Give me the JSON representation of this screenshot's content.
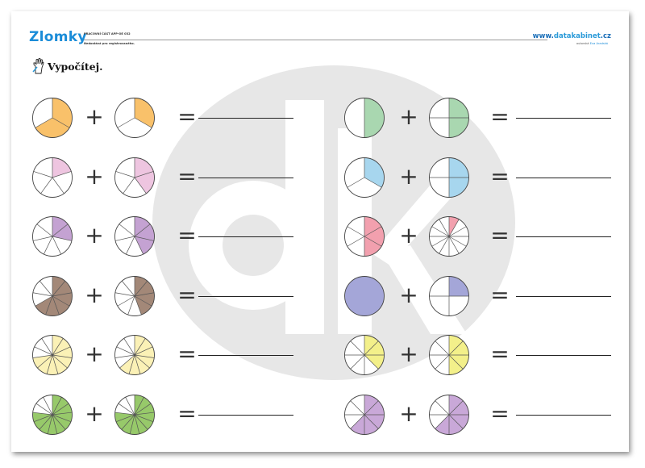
{
  "header": {
    "title": "Zlomky",
    "subtitle_line1": "PRACOVNÍ ČÁST APP-OE 032",
    "subtitle_line2": "Nedostává pro registrovaného.",
    "website_prefix": "www.",
    "website_brand": "datakabinet",
    "website_suffix": ".cz",
    "website_sub_prefix": "autorská",
    "website_sub_name": "Eva Aradská"
  },
  "task": {
    "icon": "hand-writing-icon",
    "label": "Vypočítej."
  },
  "symbols": {
    "plus": "+",
    "equals": "="
  },
  "watermark": {
    "icon": "dk-logo-icon"
  },
  "exercises": [
    {
      "color": "#f9c16a",
      "left": {
        "parts": 3,
        "filled": 2
      },
      "right": {
        "parts": 3,
        "filled": 1
      }
    },
    {
      "color": "#eec5e0",
      "left": {
        "parts": 5,
        "filled": 1
      },
      "right": {
        "parts": 5,
        "filled": 2
      }
    },
    {
      "color": "#c4a2d2",
      "left": {
        "parts": 7,
        "filled": 2
      },
      "right": {
        "parts": 7,
        "filled": 3
      }
    },
    {
      "color": "#a38878",
      "left": {
        "parts": 9,
        "filled": 6
      },
      "right": {
        "parts": 9,
        "filled": 4
      }
    },
    {
      "color": "#fbf1b6",
      "left": {
        "parts": 11,
        "filled": 8
      },
      "right": {
        "parts": 11,
        "filled": 7
      }
    },
    {
      "color": "#97c96a",
      "left": {
        "parts": 13,
        "filled": 10
      },
      "right": {
        "parts": 13,
        "filled": 10
      }
    },
    {
      "color": "#a9d7b0",
      "left": {
        "parts": 2,
        "filled": 1
      },
      "right": {
        "parts": 4,
        "filled": 2
      }
    },
    {
      "color": "#a7d6ee",
      "left": {
        "parts": 3,
        "filled": 1
      },
      "right": {
        "parts": 4,
        "filled": 2
      }
    },
    {
      "color": "#f2a0ae",
      "left": {
        "parts": 6,
        "filled": 3
      },
      "right": {
        "parts": 12,
        "filled": 1
      }
    },
    {
      "color": "#a4a6d8",
      "left": {
        "parts": 1,
        "filled": 1
      },
      "right": {
        "parts": 4,
        "filled": 1
      }
    },
    {
      "color": "#f3f08a",
      "left": {
        "parts": 8,
        "filled": 3
      },
      "right": {
        "parts": 8,
        "filled": 4
      }
    },
    {
      "color": "#c9a8d8",
      "left": {
        "parts": 8,
        "filled": 5
      },
      "right": {
        "parts": 8,
        "filled": 5
      }
    }
  ]
}
